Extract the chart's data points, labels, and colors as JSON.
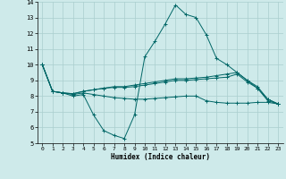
{
  "xlabel": "Humidex (Indice chaleur)",
  "xlim": [
    -0.5,
    23.5
  ],
  "ylim": [
    5,
    14
  ],
  "yticks": [
    5,
    6,
    7,
    8,
    9,
    10,
    11,
    12,
    13,
    14
  ],
  "xticks": [
    0,
    1,
    2,
    3,
    4,
    5,
    6,
    7,
    8,
    9,
    10,
    11,
    12,
    13,
    14,
    15,
    16,
    17,
    18,
    19,
    20,
    21,
    22,
    23
  ],
  "bg_color": "#ceeaea",
  "grid_color": "#aacece",
  "line_color": "#006666",
  "lines": [
    [
      10.0,
      8.3,
      8.2,
      8.0,
      8.1,
      6.8,
      5.8,
      5.5,
      5.3,
      6.8,
      10.5,
      11.5,
      12.6,
      13.8,
      13.2,
      13.0,
      11.9,
      10.4,
      10.0,
      9.5,
      9.0,
      8.5,
      7.8,
      7.5
    ],
    [
      10.0,
      8.3,
      8.2,
      8.15,
      8.3,
      8.4,
      8.5,
      8.6,
      8.6,
      8.7,
      8.8,
      8.9,
      9.0,
      9.1,
      9.1,
      9.15,
      9.2,
      9.3,
      9.4,
      9.5,
      9.0,
      8.6,
      7.8,
      7.5
    ],
    [
      10.0,
      8.3,
      8.2,
      8.15,
      8.3,
      8.4,
      8.5,
      8.55,
      8.55,
      8.6,
      8.7,
      8.8,
      8.9,
      9.0,
      9.0,
      9.05,
      9.1,
      9.15,
      9.2,
      9.4,
      8.9,
      8.5,
      7.7,
      7.5
    ],
    [
      10.0,
      8.3,
      8.2,
      8.1,
      8.2,
      8.1,
      8.0,
      7.9,
      7.85,
      7.8,
      7.8,
      7.85,
      7.9,
      7.95,
      8.0,
      8.0,
      7.7,
      7.6,
      7.55,
      7.55,
      7.55,
      7.6,
      7.6,
      7.5
    ]
  ]
}
